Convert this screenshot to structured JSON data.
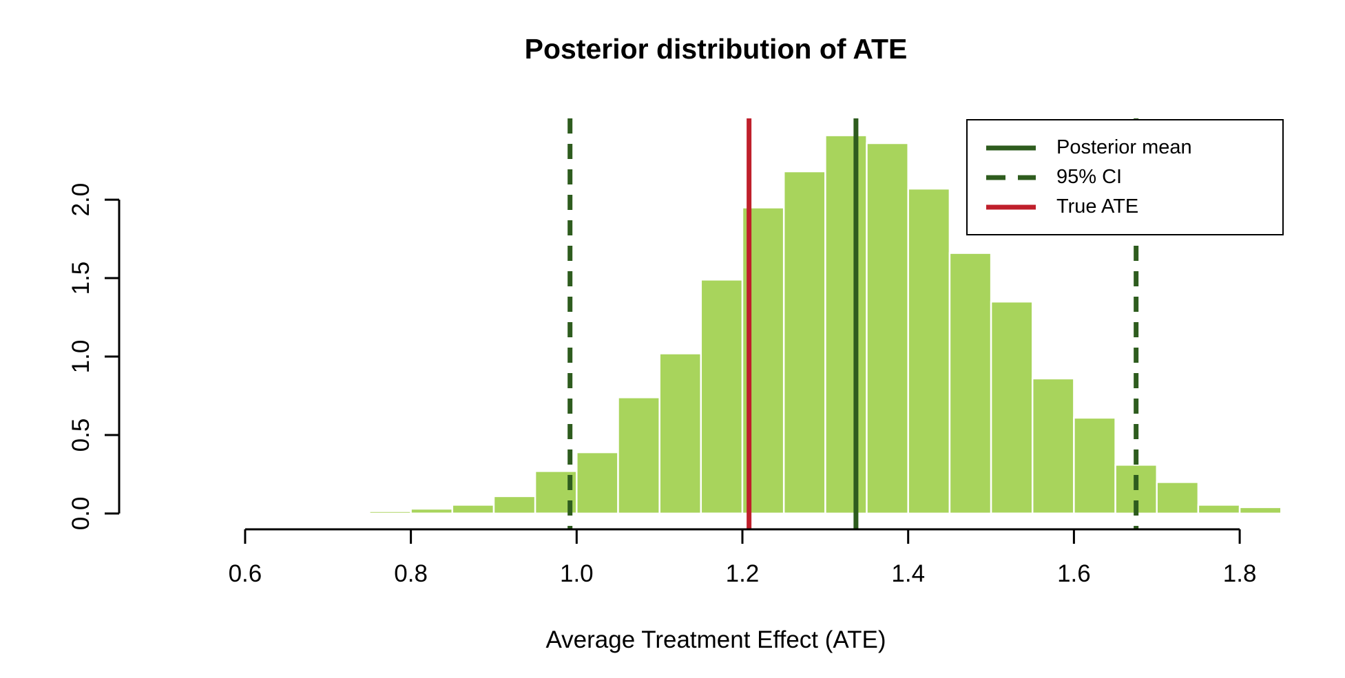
{
  "chart_data": {
    "type": "bar",
    "subtype": "histogram",
    "title": "Posterior distribution of ATE",
    "xlabel": "Average Treatment Effect (ATE)",
    "ylabel": "",
    "grid": false,
    "legend_position": "top-right",
    "x_ticks": [
      {
        "value": 0.6,
        "label": "0.6"
      },
      {
        "value": 0.8,
        "label": "0.8"
      },
      {
        "value": 1.0,
        "label": "1.0"
      },
      {
        "value": 1.2,
        "label": "1.2"
      },
      {
        "value": 1.4,
        "label": "1.4"
      },
      {
        "value": 1.6,
        "label": "1.6"
      },
      {
        "value": 1.8,
        "label": "1.8"
      }
    ],
    "y_ticks": [
      {
        "value": 0.0,
        "label": "0.0"
      },
      {
        "value": 0.5,
        "label": "0.5"
      },
      {
        "value": 1.0,
        "label": "1.0"
      },
      {
        "value": 1.5,
        "label": "1.5"
      },
      {
        "value": 2.0,
        "label": "2.0"
      }
    ],
    "x_range": [
      0.448,
      1.888
    ],
    "y_range": [
      -0.101,
      2.518
    ],
    "bin_start": 0.7,
    "bin_width": 0.05,
    "densities": [
      0.01,
      0.015,
      0.03,
      0.055,
      0.11,
      0.27,
      0.39,
      0.74,
      1.02,
      1.49,
      1.95,
      2.18,
      2.41,
      2.36,
      2.07,
      1.66,
      1.35,
      0.86,
      0.61,
      0.31,
      0.2,
      0.055,
      0.04
    ],
    "reference_lines": {
      "posterior_mean": 1.337,
      "ci_lower": 0.992,
      "ci_upper": 1.675,
      "true_ate": 1.208
    },
    "colors": {
      "bar_fill": "#a8d45c",
      "bar_border": "#ffffff",
      "dark_green": "#2e5c1e",
      "red": "#bf1f2b",
      "axis": "#000000"
    }
  },
  "legend": {
    "items": [
      {
        "label": "Posterior mean",
        "line_style": "solid",
        "color": "#2e5c1e"
      },
      {
        "label": "95% CI",
        "line_style": "dashed",
        "color": "#2e5c1e"
      },
      {
        "label": "True ATE",
        "line_style": "solid",
        "color": "#bf1f2b"
      }
    ]
  }
}
